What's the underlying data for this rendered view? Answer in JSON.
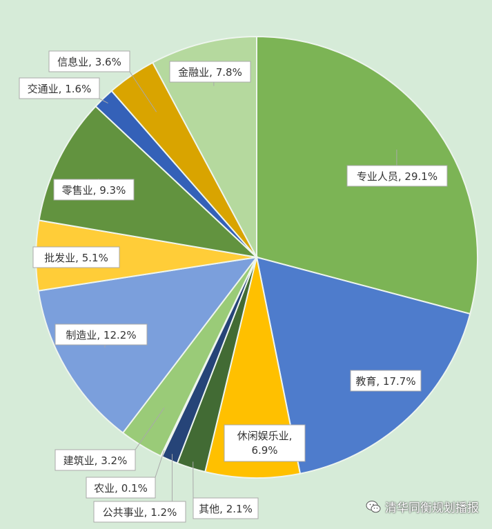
{
  "chart_data": {
    "type": "pie",
    "title": "",
    "slices": [
      {
        "label": "专业人员",
        "value": 29.1,
        "display": "专业人员, 29.1%",
        "color": "#7cb455"
      },
      {
        "label": "教育",
        "value": 17.7,
        "display": "教育, 17.7%",
        "color": "#4e7ccc"
      },
      {
        "label": "休闲娱乐业",
        "value": 6.9,
        "display": "休闲娱乐业,\n6.9%",
        "color": "#ffc000"
      },
      {
        "label": "其他",
        "value": 2.1,
        "display": "其他, 2.1%",
        "color": "#426b34"
      },
      {
        "label": "公共事业",
        "value": 1.2,
        "display": "公共事业, 1.2%",
        "color": "#264478"
      },
      {
        "label": "农业",
        "value": 0.1,
        "display": "农业, 0.1%",
        "color": "#a5a5a5"
      },
      {
        "label": "建筑业",
        "value": 3.2,
        "display": "建筑业, 3.2%",
        "color": "#9acb78"
      },
      {
        "label": "制造业",
        "value": 12.2,
        "display": "制造业, 12.2%",
        "color": "#7b9fdc"
      },
      {
        "label": "批发业",
        "value": 5.1,
        "display": "批发业, 5.1%",
        "color": "#ffcd38"
      },
      {
        "label": "零售业",
        "value": 9.3,
        "display": "零售业, 9.3%",
        "color": "#62933f"
      },
      {
        "label": "交通业",
        "value": 1.6,
        "display": "交通业, 1.6%",
        "color": "#3461b8"
      },
      {
        "label": "信息业",
        "value": 3.6,
        "display": "信息业, 3.6%",
        "color": "#d9a400"
      },
      {
        "label": "金融业",
        "value": 7.8,
        "display": "金融业, 7.8%",
        "color": "#b5d99e"
      }
    ]
  },
  "watermark": {
    "text": "清华同衡规划播报",
    "icon": "wechat-icon"
  }
}
